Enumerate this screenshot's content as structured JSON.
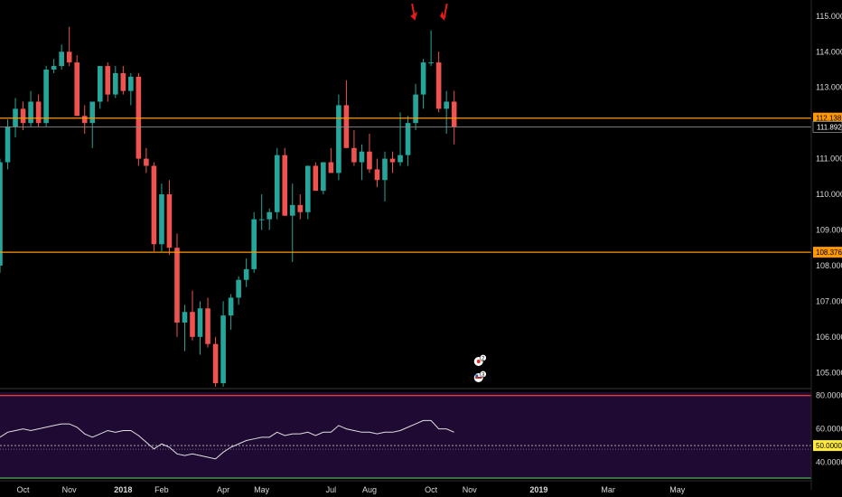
{
  "colors": {
    "background": "#000000",
    "up": "#26a69a",
    "down": "#ef5350",
    "orange": "#ff9800",
    "rsi_panel": "#1f0a33",
    "rsi_line": "#e0e0e0",
    "rsi_upper": "#e53935",
    "rsi_lower": "#4caf50",
    "rsi_mid": "#ffeb3b",
    "arrow": "#e51c1c"
  },
  "price_axis": {
    "ticks": [
      "115.000",
      "114.000",
      "113.000",
      "112.000",
      "111.000",
      "110.000",
      "109.000",
      "108.000",
      "107.000",
      "106.000",
      "105.000"
    ],
    "range": [
      104.55,
      115.3
    ]
  },
  "levels": [
    {
      "name": "resistance",
      "value": 112.138,
      "label": "112.138"
    },
    {
      "name": "support",
      "value": 108.376,
      "label": "108.376"
    }
  ],
  "last_price": {
    "value": 111.892,
    "label": "111.892"
  },
  "rsi_axis": {
    "ticks": [
      "80.0000",
      "60.0000",
      "40.0000"
    ],
    "mid_label": "50.0000",
    "range": [
      30,
      82
    ],
    "upper": 80,
    "lower": 30,
    "mid": 50
  },
  "time_axis": {
    "labels": [
      {
        "text": "Oct",
        "idx": 3,
        "bold": false
      },
      {
        "text": "Nov",
        "idx": 9,
        "bold": false
      },
      {
        "text": "2018",
        "idx": 16,
        "bold": true
      },
      {
        "text": "Feb",
        "idx": 21,
        "bold": false
      },
      {
        "text": "Apr",
        "idx": 29,
        "bold": false
      },
      {
        "text": "May",
        "idx": 34,
        "bold": false
      },
      {
        "text": "Jul",
        "idx": 43,
        "bold": false
      },
      {
        "text": "Aug",
        "idx": 48,
        "bold": false
      },
      {
        "text": "Oct",
        "idx": 56,
        "bold": false
      },
      {
        "text": "Nov",
        "idx": 61,
        "bold": false
      },
      {
        "text": "2019",
        "idx": 70,
        "bold": true
      },
      {
        "text": "Mar",
        "idx": 79,
        "bold": false
      },
      {
        "text": "May",
        "idx": 88,
        "bold": false
      }
    ]
  },
  "events": [
    {
      "label": "2",
      "idx": 61,
      "kind": "flag-jp"
    },
    {
      "label": "3",
      "idx": 61,
      "kind": "flag-us"
    }
  ],
  "chart_data": {
    "type": "candlestick",
    "timeframe": "weekly",
    "ohlc": [
      [
        108.0,
        111.0,
        107.8,
        110.9
      ],
      [
        110.9,
        112.1,
        110.7,
        111.9
      ],
      [
        111.9,
        112.7,
        111.6,
        112.4
      ],
      [
        112.4,
        112.6,
        111.8,
        112.0
      ],
      [
        112.0,
        112.9,
        111.9,
        112.6
      ],
      [
        112.6,
        112.8,
        111.9,
        112.0
      ],
      [
        112.0,
        113.6,
        111.9,
        113.5
      ],
      [
        113.5,
        113.8,
        113.4,
        113.6
      ],
      [
        113.6,
        114.2,
        113.5,
        114.0
      ],
      [
        114.0,
        114.7,
        113.6,
        113.7
      ],
      [
        113.7,
        113.9,
        112.2,
        112.2
      ],
      [
        112.2,
        112.5,
        111.7,
        112.0
      ],
      [
        112.0,
        112.6,
        111.3,
        112.6
      ],
      [
        112.6,
        113.6,
        112.4,
        113.6
      ],
      [
        113.6,
        113.7,
        112.6,
        112.8
      ],
      [
        112.8,
        113.6,
        112.7,
        113.4
      ],
      [
        113.4,
        113.6,
        112.8,
        112.9
      ],
      [
        112.9,
        113.4,
        112.5,
        113.3
      ],
      [
        113.3,
        113.4,
        110.8,
        111.0
      ],
      [
        111.0,
        111.3,
        110.6,
        110.8
      ],
      [
        110.8,
        110.9,
        108.4,
        108.6
      ],
      [
        108.6,
        110.3,
        108.4,
        110.0
      ],
      [
        110.0,
        110.4,
        108.3,
        108.5
      ],
      [
        108.5,
        108.9,
        106.0,
        106.4
      ],
      [
        106.4,
        106.9,
        105.6,
        106.7
      ],
      [
        106.7,
        107.3,
        105.9,
        106.0
      ],
      [
        106.0,
        107.0,
        105.5,
        106.8
      ],
      [
        106.8,
        107.1,
        105.7,
        105.8
      ],
      [
        105.8,
        106.0,
        104.6,
        104.7
      ],
      [
        104.7,
        107.0,
        104.6,
        106.6
      ],
      [
        106.6,
        107.2,
        106.2,
        107.1
      ],
      [
        107.1,
        107.7,
        106.9,
        107.6
      ],
      [
        107.6,
        108.2,
        107.4,
        107.9
      ],
      [
        107.9,
        109.5,
        107.8,
        109.3
      ],
      [
        109.3,
        110.0,
        109.0,
        109.3
      ],
      [
        109.3,
        109.6,
        109.0,
        109.5
      ],
      [
        109.5,
        111.3,
        109.3,
        111.1
      ],
      [
        111.1,
        111.3,
        109.4,
        109.4
      ],
      [
        109.4,
        110.3,
        108.1,
        109.7
      ],
      [
        109.7,
        110.0,
        109.3,
        109.5
      ],
      [
        109.5,
        110.8,
        109.3,
        110.8
      ],
      [
        110.8,
        110.9,
        110.1,
        110.1
      ],
      [
        110.1,
        110.9,
        110.0,
        110.9
      ],
      [
        110.9,
        111.3,
        110.6,
        110.6
      ],
      [
        110.6,
        112.8,
        110.4,
        112.5
      ],
      [
        112.5,
        113.2,
        111.3,
        111.3
      ],
      [
        111.3,
        111.8,
        110.8,
        110.9
      ],
      [
        110.9,
        111.4,
        110.4,
        111.2
      ],
      [
        111.2,
        111.7,
        110.6,
        110.7
      ],
      [
        110.7,
        111.0,
        110.2,
        110.4
      ],
      [
        110.4,
        111.2,
        109.8,
        111.0
      ],
      [
        111.0,
        111.2,
        110.6,
        110.9
      ],
      [
        110.9,
        112.3,
        110.8,
        111.1
      ],
      [
        111.1,
        112.2,
        110.8,
        112.0
      ],
      [
        112.0,
        113.1,
        111.8,
        112.8
      ],
      [
        112.8,
        113.8,
        112.4,
        113.7
      ],
      [
        113.7,
        114.6,
        113.6,
        113.7
      ],
      [
        113.7,
        114.0,
        112.3,
        112.4
      ],
      [
        112.4,
        112.9,
        111.7,
        112.6
      ],
      [
        112.6,
        112.9,
        111.4,
        111.9
      ]
    ],
    "rsi": [
      55,
      58,
      59,
      60,
      59,
      60,
      61,
      62,
      63,
      63,
      61,
      57,
      55,
      57,
      59,
      58,
      59,
      59,
      56,
      52,
      48,
      51,
      49,
      45,
      44,
      45,
      44,
      43,
      42,
      46,
      49,
      51,
      53,
      54,
      55,
      55,
      58,
      56,
      57,
      57,
      58,
      56,
      58,
      58,
      62,
      60,
      59,
      58,
      58,
      57,
      58,
      58,
      59,
      61,
      63,
      65,
      65,
      60,
      60,
      58
    ],
    "levels": [
      112.138,
      108.376
    ],
    "ylim": [
      104.55,
      115.3
    ],
    "rsi_ylim": [
      30,
      82
    ]
  }
}
